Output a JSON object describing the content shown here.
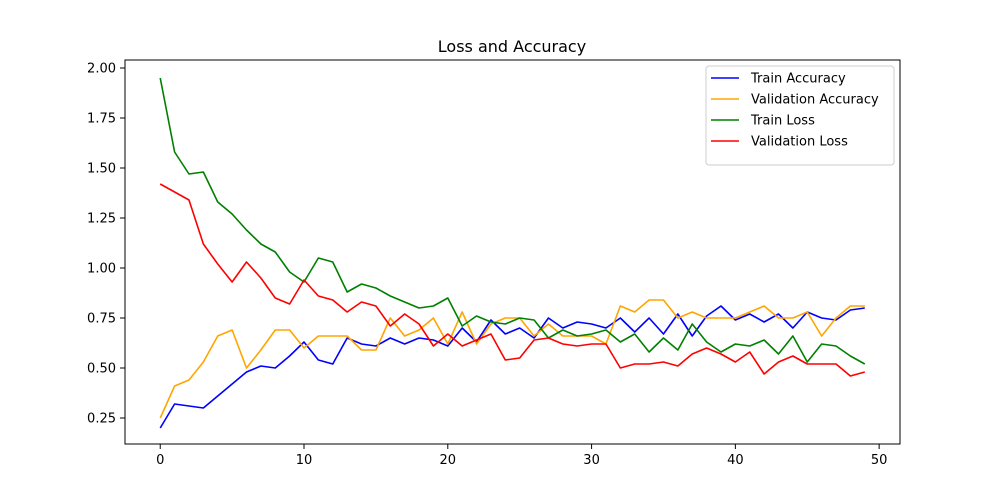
{
  "chart_data": {
    "type": "line",
    "title": "Loss and Accuracy",
    "xlabel": "",
    "ylabel": "",
    "xlim": [
      -2.45,
      51.45
    ],
    "ylim": [
      0.12,
      2.04
    ],
    "x_ticks": [
      0,
      10,
      20,
      30,
      40,
      50
    ],
    "y_ticks": [
      0.25,
      0.5,
      0.75,
      1.0,
      1.25,
      1.5,
      1.75,
      2.0
    ],
    "x_tick_labels": [
      "0",
      "10",
      "20",
      "30",
      "40",
      "50"
    ],
    "y_tick_labels": [
      "0.25",
      "0.50",
      "0.75",
      "1.00",
      "1.25",
      "1.50",
      "1.75",
      "2.00"
    ],
    "grid": false,
    "legend_position": "top-right",
    "x": [
      0,
      1,
      2,
      3,
      4,
      5,
      6,
      7,
      8,
      9,
      10,
      11,
      12,
      13,
      14,
      15,
      16,
      17,
      18,
      19,
      20,
      21,
      22,
      23,
      24,
      25,
      26,
      27,
      28,
      29,
      30,
      31,
      32,
      33,
      34,
      35,
      36,
      37,
      38,
      39,
      40,
      41,
      42,
      43,
      44,
      45,
      46,
      47,
      48,
      49
    ],
    "series": [
      {
        "name": "Train Accuracy",
        "color": "#0000ff",
        "values": [
          0.2,
          0.32,
          0.31,
          0.3,
          0.36,
          0.42,
          0.48,
          0.51,
          0.5,
          0.56,
          0.63,
          0.54,
          0.52,
          0.65,
          0.62,
          0.61,
          0.65,
          0.62,
          0.65,
          0.64,
          0.61,
          0.7,
          0.63,
          0.74,
          0.67,
          0.7,
          0.65,
          0.75,
          0.7,
          0.73,
          0.72,
          0.7,
          0.75,
          0.68,
          0.75,
          0.67,
          0.77,
          0.66,
          0.76,
          0.81,
          0.74,
          0.77,
          0.73,
          0.77,
          0.7,
          0.78,
          0.75,
          0.74,
          0.79,
          0.8
        ]
      },
      {
        "name": "Validation Accuracy",
        "color": "#ffa500",
        "values": [
          0.25,
          0.41,
          0.44,
          0.53,
          0.66,
          0.69,
          0.5,
          0.59,
          0.69,
          0.69,
          0.6,
          0.66,
          0.66,
          0.66,
          0.59,
          0.59,
          0.75,
          0.66,
          0.69,
          0.75,
          0.62,
          0.78,
          0.62,
          0.72,
          0.75,
          0.75,
          0.66,
          0.72,
          0.66,
          0.66,
          0.66,
          0.62,
          0.81,
          0.78,
          0.84,
          0.84,
          0.75,
          0.78,
          0.75,
          0.75,
          0.75,
          0.78,
          0.81,
          0.75,
          0.75,
          0.78,
          0.66,
          0.75,
          0.81,
          0.81
        ]
      },
      {
        "name": "Train Loss",
        "color": "#008000",
        "values": [
          1.95,
          1.58,
          1.47,
          1.48,
          1.33,
          1.27,
          1.19,
          1.12,
          1.08,
          0.98,
          0.93,
          1.05,
          1.03,
          0.88,
          0.92,
          0.9,
          0.86,
          0.83,
          0.8,
          0.81,
          0.85,
          0.71,
          0.76,
          0.73,
          0.72,
          0.75,
          0.74,
          0.65,
          0.69,
          0.66,
          0.67,
          0.69,
          0.63,
          0.67,
          0.58,
          0.65,
          0.59,
          0.72,
          0.63,
          0.58,
          0.62,
          0.61,
          0.64,
          0.57,
          0.66,
          0.53,
          0.62,
          0.61,
          0.56,
          0.52
        ]
      },
      {
        "name": "Validation Loss",
        "color": "#ff0000",
        "values": [
          1.42,
          1.38,
          1.34,
          1.12,
          1.02,
          0.93,
          1.03,
          0.95,
          0.85,
          0.82,
          0.94,
          0.86,
          0.84,
          0.78,
          0.83,
          0.81,
          0.71,
          0.77,
          0.72,
          0.61,
          0.67,
          0.61,
          0.64,
          0.67,
          0.54,
          0.55,
          0.64,
          0.65,
          0.62,
          0.61,
          0.62,
          0.62,
          0.5,
          0.52,
          0.52,
          0.53,
          0.51,
          0.57,
          0.6,
          0.57,
          0.53,
          0.58,
          0.47,
          0.53,
          0.56,
          0.52,
          0.52,
          0.52,
          0.46,
          0.48
        ]
      }
    ]
  }
}
